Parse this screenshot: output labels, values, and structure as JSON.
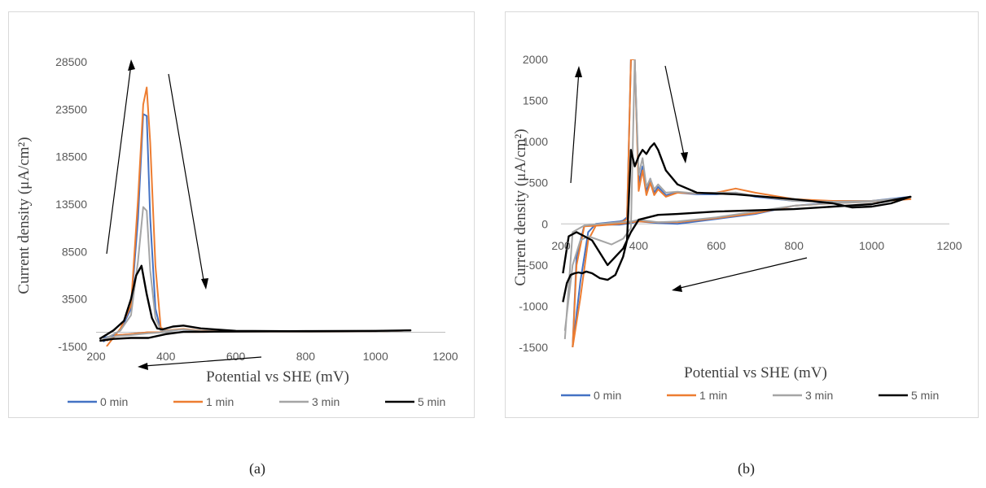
{
  "colors": {
    "0 min": "#4472C4",
    "1 min": "#ED7D31",
    "3 min": "#A5A5A5",
    "5 min": "#000000",
    "axis": "#bfbfbf"
  },
  "captions": {
    "a": "(a)",
    "b": "(b)"
  },
  "chart_data": [
    {
      "type": "line",
      "panel": "a",
      "xlabel": "Potential vs SHE (mV)",
      "ylabel": "Current density (μA/cm²)",
      "xlim": [
        200,
        1200
      ],
      "ylim": [
        -1500,
        28500
      ],
      "xticks": [
        "200",
        "400",
        "600",
        "800",
        "1000",
        "1200"
      ],
      "yticks": [
        "-1500",
        "3500",
        "8500",
        "13500",
        "18500",
        "23500",
        "28500"
      ],
      "legend_position": "bottom",
      "series": [
        {
          "name": "0 min",
          "x": [
            220,
            270,
            300,
            320,
            335,
            345,
            355,
            370,
            385,
            400,
            450,
            500,
            600,
            800,
            1000,
            1100,
            1000,
            800,
            600,
            450,
            400,
            350,
            300,
            260,
            220
          ],
          "y": [
            -1000,
            200,
            2500,
            12000,
            23000,
            22800,
            12000,
            2500,
            200,
            150,
            300,
            120,
            80,
            50,
            80,
            200,
            120,
            100,
            80,
            0,
            0,
            0,
            -200,
            -300,
            -600
          ]
        },
        {
          "name": "1 min",
          "x": [
            230,
            270,
            300,
            320,
            335,
            345,
            355,
            370,
            385,
            400,
            450,
            500,
            600,
            800,
            1000,
            1100,
            1000,
            800,
            600,
            450,
            400,
            350,
            300,
            260,
            230
          ],
          "y": [
            -1500,
            400,
            2800,
            14000,
            24000,
            25800,
            20000,
            7000,
            500,
            200,
            350,
            150,
            80,
            50,
            80,
            200,
            120,
            100,
            80,
            0,
            0,
            0,
            -200,
            -300,
            -900
          ]
        },
        {
          "name": "3 min",
          "x": [
            220,
            270,
            300,
            320,
            335,
            345,
            355,
            370,
            385,
            400,
            450,
            500,
            600,
            800,
            1000,
            1100,
            1000,
            800,
            600,
            450,
            400,
            350,
            300,
            260,
            220
          ],
          "y": [
            -800,
            200,
            1800,
            7500,
            13200,
            12800,
            6500,
            1500,
            200,
            150,
            300,
            120,
            80,
            50,
            80,
            200,
            120,
            100,
            80,
            0,
            0,
            -100,
            -300,
            -400,
            -700
          ]
        },
        {
          "name": "5 min",
          "x": [
            210,
            250,
            280,
            300,
            315,
            330,
            345,
            360,
            375,
            390,
            420,
            450,
            500,
            600,
            800,
            1000,
            1100,
            1000,
            800,
            600,
            450,
            400,
            350,
            300,
            250,
            210
          ],
          "y": [
            -700,
            200,
            1200,
            3500,
            6000,
            7000,
            4000,
            1500,
            400,
            300,
            600,
            700,
            400,
            150,
            100,
            150,
            200,
            150,
            120,
            80,
            50,
            -200,
            -600,
            -600,
            -700,
            -900
          ]
        }
      ]
    },
    {
      "type": "line",
      "panel": "b",
      "xlabel": "Potential vs SHE (mV)",
      "ylabel": "Current density (μA/cm²)",
      "xlim": [
        200,
        1200
      ],
      "ylim": [
        -1500,
        2000
      ],
      "xticks": [
        "200",
        "400",
        "600",
        "800",
        "1000",
        "1200"
      ],
      "yticks": [
        "-1500",
        "-1000",
        "-500",
        "0",
        "500",
        "1000",
        "1500",
        "2000"
      ],
      "legend_position": "bottom",
      "series": [
        {
          "name": "0 min",
          "x": [
            230,
            250,
            270,
            290,
            310,
            330,
            350,
            360,
            370,
            380,
            390,
            400,
            410,
            420,
            430,
            440,
            450,
            470,
            500,
            550,
            600,
            650,
            700,
            800,
            900,
            1000,
            1100,
            1000,
            900,
            800,
            700,
            600,
            500,
            450,
            400,
            380,
            350,
            300,
            260,
            240,
            230
          ],
          "y": [
            -1500,
            -700,
            -100,
            0,
            10,
            20,
            30,
            40,
            80,
            2000,
            2000,
            500,
            700,
            400,
            550,
            380,
            450,
            350,
            380,
            360,
            360,
            380,
            330,
            280,
            270,
            280,
            330,
            280,
            260,
            220,
            120,
            60,
            0,
            10,
            30,
            10,
            -10,
            -10,
            -20,
            -400,
            -1500
          ]
        },
        {
          "name": "1 min",
          "x": [
            230,
            250,
            270,
            290,
            310,
            330,
            350,
            360,
            370,
            380,
            390,
            400,
            410,
            420,
            430,
            440,
            450,
            470,
            500,
            550,
            600,
            650,
            700,
            800,
            900,
            1000,
            1100,
            1000,
            900,
            800,
            700,
            600,
            500,
            450,
            400,
            380,
            350,
            300,
            260,
            240,
            230
          ],
          "y": [
            -1500,
            -900,
            -200,
            -20,
            0,
            10,
            20,
            30,
            60,
            2000,
            2000,
            400,
            650,
            350,
            500,
            350,
            420,
            330,
            380,
            370,
            380,
            430,
            380,
            300,
            280,
            280,
            300,
            270,
            250,
            220,
            130,
            70,
            20,
            20,
            30,
            20,
            0,
            -20,
            -30,
            -500,
            -1500
          ]
        },
        {
          "name": "3 min",
          "x": [
            210,
            230,
            250,
            270,
            300,
            330,
            360,
            380,
            390,
            400,
            410,
            420,
            430,
            440,
            450,
            470,
            500,
            550,
            600,
            650,
            700,
            800,
            900,
            1000,
            1100,
            1000,
            900,
            800,
            700,
            600,
            500,
            450,
            400,
            380,
            350,
            300,
            260,
            230,
            210
          ],
          "y": [
            -1300,
            -500,
            -200,
            -150,
            -200,
            -250,
            -180,
            -50,
            2000,
            600,
            800,
            450,
            550,
            420,
            480,
            380,
            390,
            370,
            380,
            380,
            340,
            280,
            270,
            280,
            320,
            270,
            250,
            220,
            150,
            80,
            30,
            20,
            50,
            30,
            20,
            0,
            -20,
            -100,
            -1400
          ]
        },
        {
          "name": "5 min",
          "x": [
            205,
            215,
            225,
            235,
            245,
            255,
            265,
            280,
            300,
            320,
            340,
            360,
            370,
            380,
            390,
            400,
            410,
            420,
            430,
            440,
            450,
            470,
            500,
            550,
            600,
            650,
            700,
            800,
            900,
            950,
            1000,
            1050,
            1100,
            1000,
            800,
            600,
            500,
            450,
            400,
            380,
            360,
            320,
            280,
            240,
            220,
            205
          ],
          "y": [
            -950,
            -720,
            -620,
            -600,
            -590,
            -600,
            -580,
            -600,
            -660,
            -680,
            -620,
            -400,
            -200,
            900,
            700,
            820,
            900,
            850,
            930,
            980,
            900,
            650,
            480,
            380,
            370,
            360,
            340,
            300,
            250,
            200,
            210,
            250,
            330,
            240,
            180,
            150,
            120,
            110,
            50,
            -100,
            -300,
            -500,
            -200,
            -100,
            -150,
            -600
          ]
        }
      ]
    }
  ]
}
